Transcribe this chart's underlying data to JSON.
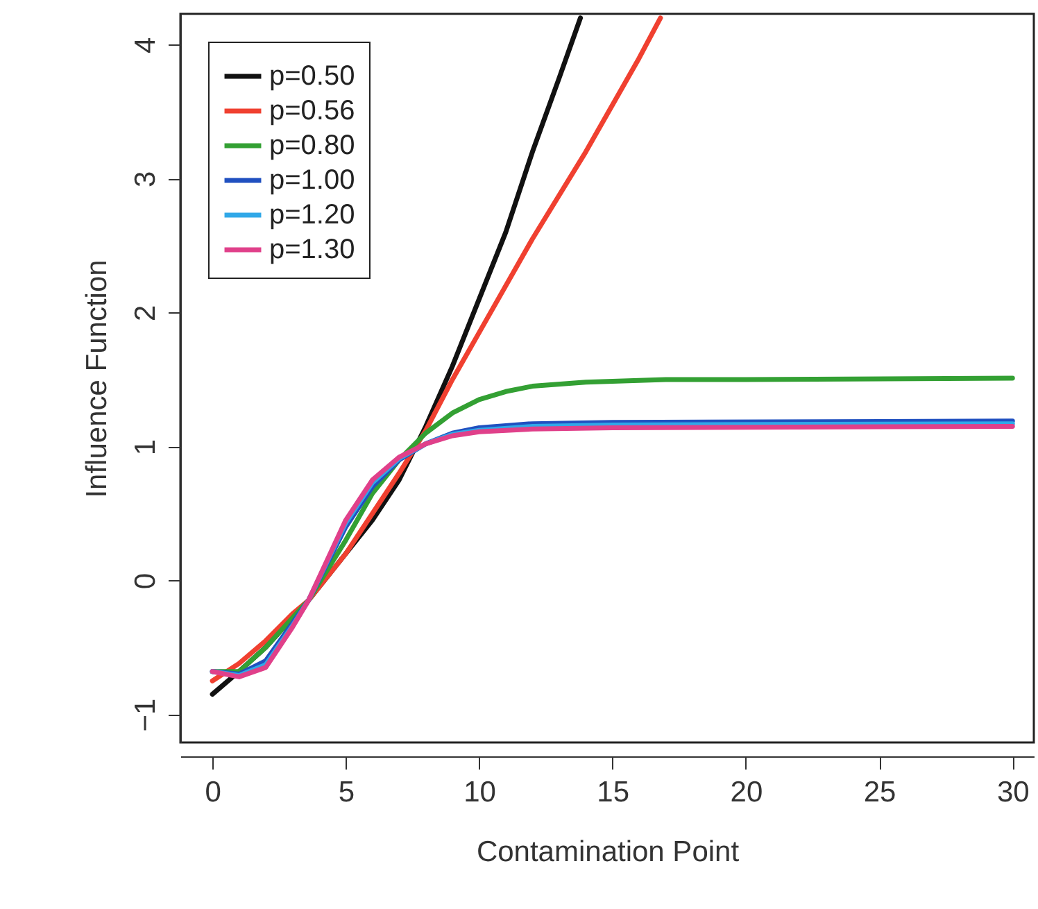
{
  "chart_data": {
    "type": "line",
    "xlabel": "Contamination Point",
    "ylabel": "Influence Function",
    "xlim": [
      -1.2,
      30.8
    ],
    "ylim": [
      -1.21,
      4.23
    ],
    "xticks": [
      0,
      5,
      10,
      15,
      20,
      25,
      30
    ],
    "yticks": [
      -1,
      0,
      1,
      2,
      3,
      4
    ],
    "legend": "top left",
    "marker": "none",
    "line_style": "solid",
    "series": [
      {
        "name": "p=0.50",
        "color": "#111111",
        "x": [
          0,
          1,
          2,
          3,
          3.6,
          5,
          6,
          7,
          8,
          9,
          10,
          11,
          12,
          13,
          13.8
        ],
        "values": [
          -0.85,
          -0.68,
          -0.5,
          -0.28,
          -0.15,
          0.2,
          0.45,
          0.75,
          1.15,
          1.6,
          2.1,
          2.6,
          3.2,
          3.75,
          4.2
        ]
      },
      {
        "name": "p=0.56",
        "color": "#f04030",
        "x": [
          0,
          1,
          2,
          3,
          3.6,
          4,
          5,
          6,
          7,
          8,
          9,
          10,
          12,
          14,
          16,
          16.8
        ],
        "values": [
          -0.75,
          -0.62,
          -0.45,
          -0.25,
          -0.15,
          -0.05,
          0.2,
          0.5,
          0.8,
          1.12,
          1.5,
          1.85,
          2.55,
          3.2,
          3.9,
          4.2
        ]
      },
      {
        "name": "p=0.80",
        "color": "#33a033",
        "x": [
          0,
          1,
          2,
          3,
          3.6,
          5,
          6,
          7,
          8,
          9,
          10,
          11,
          12,
          14,
          17,
          20,
          30
        ],
        "values": [
          -0.68,
          -0.68,
          -0.5,
          -0.28,
          -0.15,
          0.3,
          0.65,
          0.9,
          1.1,
          1.25,
          1.35,
          1.41,
          1.45,
          1.48,
          1.5,
          1.5,
          1.51
        ]
      },
      {
        "name": "p=1.00",
        "color": "#2050c0",
        "x": [
          0,
          1,
          2,
          3,
          3.6,
          5,
          6,
          7,
          8,
          9,
          10,
          12,
          15,
          30
        ],
        "values": [
          -0.68,
          -0.7,
          -0.6,
          -0.32,
          -0.15,
          0.4,
          0.7,
          0.9,
          1.02,
          1.1,
          1.14,
          1.17,
          1.18,
          1.19
        ]
      },
      {
        "name": "p=1.20",
        "color": "#30a8e8",
        "x": [
          0,
          1,
          2,
          3,
          3.6,
          5,
          6,
          7,
          8,
          9,
          10,
          12,
          15,
          30
        ],
        "values": [
          -0.68,
          -0.71,
          -0.63,
          -0.34,
          -0.15,
          0.43,
          0.73,
          0.91,
          1.02,
          1.09,
          1.12,
          1.15,
          1.16,
          1.17
        ]
      },
      {
        "name": "p=1.30",
        "color": "#e0408a",
        "x": [
          0,
          1,
          2,
          3,
          3.6,
          5,
          6,
          7,
          8,
          9,
          10,
          12,
          15,
          30
        ],
        "values": [
          -0.68,
          -0.72,
          -0.65,
          -0.35,
          -0.15,
          0.45,
          0.75,
          0.92,
          1.02,
          1.08,
          1.11,
          1.13,
          1.14,
          1.15
        ]
      }
    ]
  }
}
